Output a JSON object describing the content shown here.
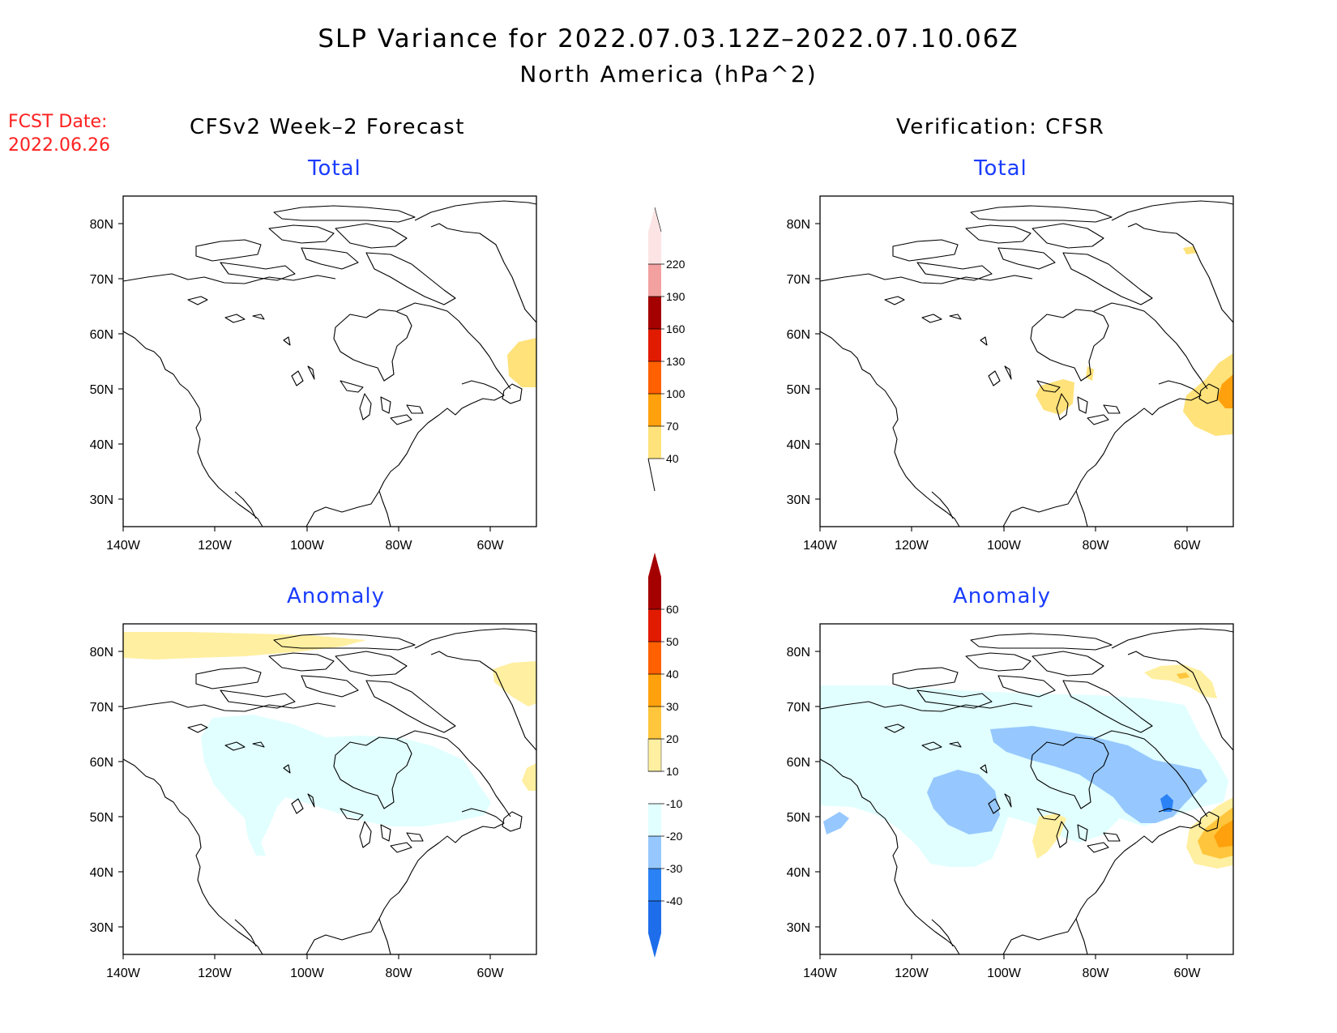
{
  "title": {
    "line1": "SLP Variance for 2022.07.03.12Z–2022.07.10.06Z",
    "line2": "North America (hPa^2)"
  },
  "fcst_date": {
    "label": "FCST Date:",
    "value": "2022.06.26"
  },
  "columns": {
    "left": "CFSv2 Week–2 Forecast",
    "right": "Verification: CFSR"
  },
  "panels": {
    "top_left": "Total",
    "top_right": "Total",
    "bottom_left": "Anomaly",
    "bottom_right": "Anomaly"
  },
  "map_axes": {
    "lat_labels": [
      "80N",
      "70N",
      "60N",
      "50N",
      "40N",
      "30N"
    ],
    "lon_labels": [
      "140W",
      "120W",
      "100W",
      "80W",
      "60W"
    ]
  },
  "total_colorbar": {
    "colors": [
      "#ffe27a",
      "#ffa10c",
      "#ff6000",
      "#e11b00",
      "#a50000",
      "#f2a0a0",
      "#fde4e4"
    ],
    "labels": [
      "40",
      "70",
      "100",
      "130",
      "160",
      "190",
      "220"
    ]
  },
  "anomaly_colorbar": {
    "colors": [
      "#1e6eeb",
      "#2b82f5",
      "#96c8ff",
      "#e1ffff",
      "#ffffff",
      "#ffefa0",
      "#ffc53c",
      "#ffa10c",
      "#ff6000",
      "#e11b00",
      "#a50000"
    ],
    "labels": [
      "-40",
      "-30",
      "-20",
      "-10",
      "10",
      "20",
      "30",
      "40",
      "50",
      "60"
    ]
  }
}
